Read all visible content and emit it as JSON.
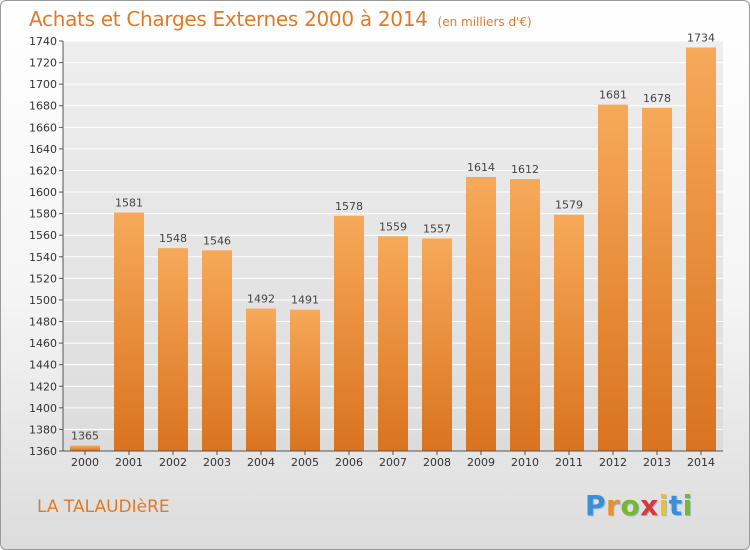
{
  "header": {
    "title": "Achats et Charges Externes 2000 à 2014",
    "unit": "(en milliers d'€)"
  },
  "footer": {
    "commune": "LA TALAUDIèRE",
    "brand_letters": [
      "P",
      "r",
      "o",
      "x",
      "i",
      "t",
      "i"
    ],
    "brand_colors": [
      "#3a8fd6",
      "#e8912c",
      "#79b82e",
      "#d63a3a",
      "#e8c22c",
      "#3a8fd6",
      "#79b82e"
    ]
  },
  "colors": {
    "bar_top": "#f7a95a",
    "bar_bottom": "#d9731f",
    "accent": "#e07a2a",
    "grid": "#ffffff"
  },
  "chart_data": {
    "type": "bar",
    "title": "Achats et Charges Externes 2000 à 2014",
    "categories": [
      "2000",
      "2001",
      "2002",
      "2003",
      "2004",
      "2005",
      "2006",
      "2007",
      "2008",
      "2009",
      "2010",
      "2011",
      "2012",
      "2013",
      "2014"
    ],
    "values": [
      1365,
      1581,
      1548,
      1546,
      1492,
      1491,
      1578,
      1559,
      1557,
      1614,
      1612,
      1579,
      1681,
      1678,
      1734
    ],
    "ylim": [
      1360,
      1740
    ],
    "yticks": [
      1360,
      1380,
      1400,
      1420,
      1440,
      1460,
      1480,
      1500,
      1520,
      1540,
      1560,
      1580,
      1600,
      1620,
      1640,
      1660,
      1680,
      1700,
      1720,
      1740
    ],
    "grid": true,
    "xlabel": "",
    "ylabel": ""
  }
}
